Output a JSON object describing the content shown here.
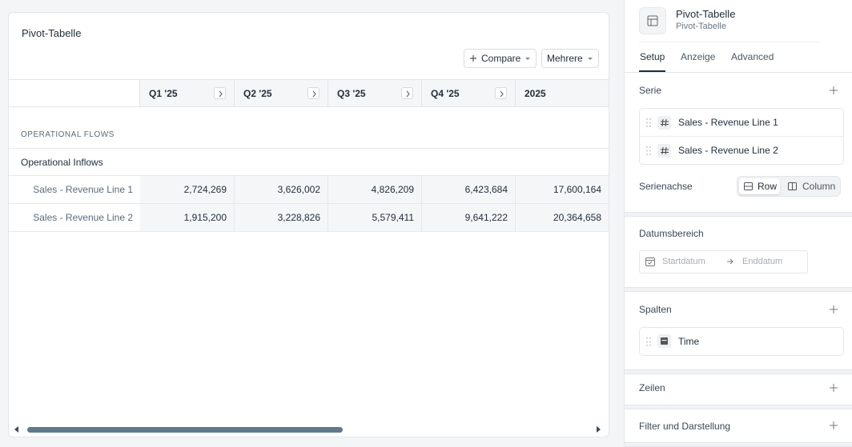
{
  "panel": {
    "title": "Pivot-Tabelle",
    "buttons": [
      "Compare",
      "Mehrere"
    ]
  },
  "table": {
    "columns": [
      "Q1 '25",
      "Q2 '25",
      "Q3 '25",
      "Q4 '25",
      "2025"
    ],
    "section": "OPERATIONAL FLOWS",
    "group": "Operational Inflows",
    "rows": [
      {
        "label": "Sales - Revenue Line 1",
        "values": [
          "2,724,269",
          "3,626,002",
          "4,826,209",
          "6,423,684",
          "17,600,164"
        ]
      },
      {
        "label": "Sales - Revenue Line 2",
        "values": [
          "1,915,200",
          "3,228,826",
          "5,579,411",
          "9,641,222",
          "20,364,658"
        ]
      }
    ]
  },
  "sidebar": {
    "title": "Pivot-Tabelle",
    "subtitle": "Pivot-Tabelle",
    "tabs": [
      "Setup",
      "Anzeige",
      "Advanced"
    ],
    "series": {
      "title": "Serie",
      "items": [
        "Sales - Revenue Line 1",
        "Sales - Revenue Line 2"
      ]
    },
    "axis": {
      "title": "Serienachse",
      "options": [
        "Row",
        "Column"
      ]
    },
    "dates": {
      "title": "Datumsbereich",
      "start": "Startdatum",
      "end": "Enddatum"
    },
    "columns": {
      "title": "Spalten",
      "items": [
        "Time"
      ]
    },
    "rows": {
      "title": "Zeilen"
    },
    "filter": {
      "title": "Filter und Darstellung"
    }
  }
}
